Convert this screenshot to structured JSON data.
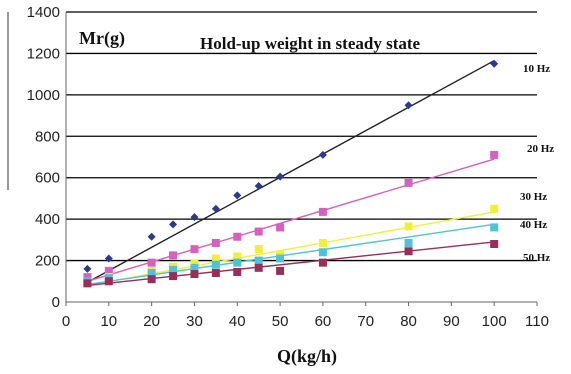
{
  "chart_data": {
    "type": "scatter",
    "title": "Hold-up weight in steady state",
    "ylabel": "Mr(g)",
    "xlabel": "Q(kg/h)",
    "xlim": [
      0,
      110
    ],
    "ylim": [
      0,
      1400
    ],
    "xticks": [
      "0",
      "10",
      "20",
      "30",
      "40",
      "50",
      "60",
      "70",
      "80",
      "90",
      "100",
      "110"
    ],
    "yticks": [
      "0",
      "200",
      "400",
      "600",
      "800",
      "1000",
      "1200",
      "1400"
    ],
    "grid": "horizontal",
    "series": [
      {
        "name": "10 Hz",
        "color": "#2b3a8f",
        "marker": "diamond",
        "lineColor": "#222222",
        "x": [
          5,
          10,
          20,
          25,
          30,
          35,
          40,
          45,
          50,
          60,
          80,
          100
        ],
        "y": [
          160,
          210,
          315,
          375,
          410,
          450,
          515,
          560,
          605,
          710,
          950,
          1150
        ],
        "fit": [
          [
            5,
            95
          ],
          [
            100,
            1165
          ]
        ]
      },
      {
        "name": "20 Hz",
        "color": "#d65fc0",
        "marker": "square",
        "lineColor": "#d65fc0",
        "x": [
          5,
          10,
          20,
          25,
          30,
          35,
          40,
          45,
          50,
          60,
          80,
          100
        ],
        "y": [
          120,
          150,
          190,
          225,
          255,
          285,
          315,
          340,
          360,
          435,
          575,
          710
        ],
        "fit": [
          [
            5,
            100
          ],
          [
            100,
            690
          ]
        ]
      },
      {
        "name": "30 Hz",
        "color": "#f2ef3a",
        "marker": "square",
        "lineColor": "#f2ef3a",
        "x": [
          5,
          10,
          20,
          25,
          30,
          35,
          40,
          45,
          50,
          60,
          80,
          100
        ],
        "y": [
          95,
          120,
          150,
          170,
          185,
          210,
          220,
          255,
          230,
          285,
          365,
          450
        ],
        "fit": [
          [
            5,
            80
          ],
          [
            100,
            435
          ]
        ]
      },
      {
        "name": "40 Hz",
        "color": "#4cc3d8",
        "marker": "square",
        "lineColor": "#4cc3d8",
        "x": [
          5,
          10,
          20,
          25,
          30,
          35,
          40,
          45,
          50,
          60,
          80,
          100
        ],
        "y": [
          100,
          115,
          140,
          155,
          165,
          180,
          190,
          200,
          210,
          240,
          285,
          360
        ],
        "fit": [
          [
            5,
            85
          ],
          [
            100,
            375
          ]
        ]
      },
      {
        "name": "50 Hz",
        "color": "#9b2d5a",
        "marker": "square",
        "lineColor": "#9b2d5a",
        "x": [
          5,
          10,
          20,
          25,
          30,
          35,
          40,
          45,
          50,
          60,
          80,
          100
        ],
        "y": [
          90,
          100,
          110,
          125,
          135,
          140,
          145,
          165,
          150,
          190,
          245,
          280
        ],
        "fit": [
          [
            5,
            80
          ],
          [
            100,
            290
          ]
        ]
      }
    ]
  }
}
